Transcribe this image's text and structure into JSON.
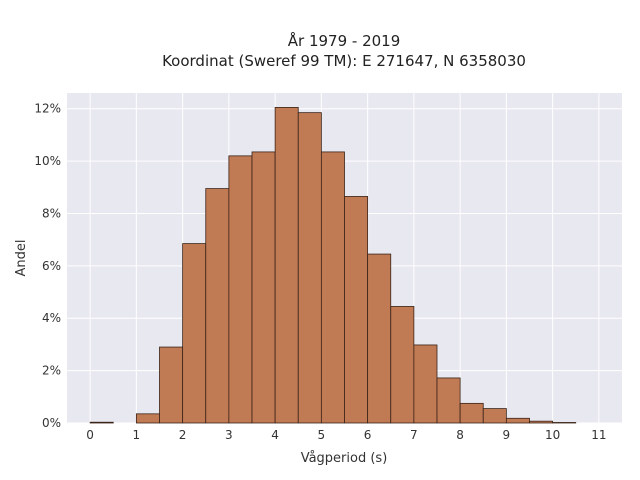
{
  "chart_data": {
    "type": "bar",
    "title_line1": "År 1979 - 2019",
    "title_line2": "Koordinat (Sweref 99 TM): E 271647, N 6358030",
    "xlabel": "Vågperiod (s)",
    "ylabel": "Andel",
    "bin_width": 0.5,
    "bins_start": [
      0,
      0.5,
      1,
      1.5,
      2,
      2.5,
      3,
      3.5,
      4,
      4.5,
      5,
      5.5,
      6,
      6.5,
      7,
      7.5,
      8,
      8.5,
      9,
      9.5,
      10
    ],
    "values": [
      0.03,
      0,
      0.35,
      2.9,
      6.85,
      8.95,
      10.2,
      10.35,
      12.05,
      11.85,
      10.35,
      8.65,
      6.45,
      4.45,
      2.98,
      1.72,
      0.75,
      0.55,
      0.18,
      0.07,
      0.02
    ],
    "xlim": [
      -0.5,
      11.5
    ],
    "ylim": [
      0,
      12.6
    ],
    "x_ticks": [
      0,
      1,
      2,
      3,
      4,
      5,
      6,
      7,
      8,
      9,
      10,
      11
    ],
    "x_tick_labels": [
      "0",
      "1",
      "2",
      "3",
      "4",
      "5",
      "6",
      "7",
      "8",
      "9",
      "10",
      "11"
    ],
    "y_ticks": [
      0,
      2,
      4,
      6,
      8,
      10,
      12
    ],
    "y_tick_labels": [
      "0%",
      "2%",
      "4%",
      "6%",
      "8%",
      "10%",
      "12%"
    ],
    "grid": true,
    "bar_color": "#c07a54",
    "bar_edge_color": "#3a2418",
    "background_color": "#e8e8f0"
  }
}
